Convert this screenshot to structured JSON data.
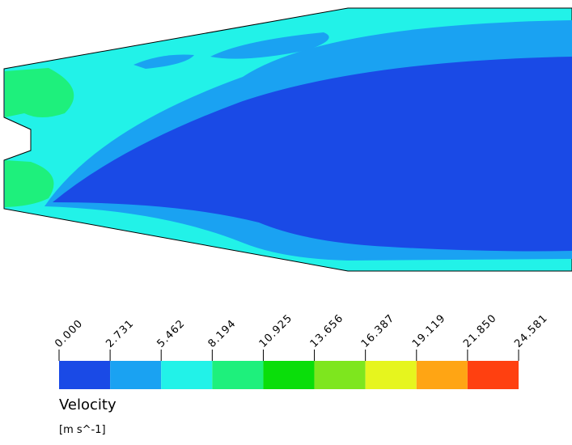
{
  "chart_data": {
    "type": "contour",
    "title": "Velocity",
    "unit": "[m s^-1]",
    "colorbar_lim": [
      0,
      24.581
    ],
    "colorbar_ticks": [
      {
        "value": 0,
        "label": "0.000"
      },
      2.731,
      5.462,
      8.194,
      10.925,
      13.656,
      16.387,
      19.119,
      {
        "value": 21.85,
        "label": "21.850"
      },
      24.581
    ],
    "colorbar_colors": [
      "#1a4ae6",
      "#1aa2f2",
      "#22f2e8",
      "#1ef07c",
      "#0ade0a",
      "#7ee61e",
      "#e6f51e",
      "#ffa514",
      "#ff4010"
    ]
  }
}
